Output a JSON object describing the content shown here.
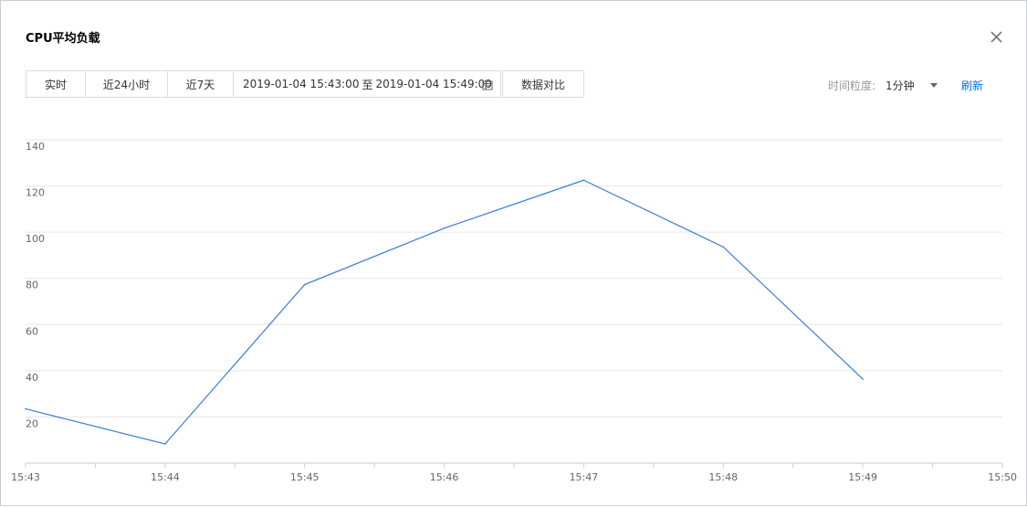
{
  "dialog": {
    "title": "CPU平均负载"
  },
  "toolbar": {
    "realtime": "实时",
    "last24h": "近24小时",
    "last7d": "近7天",
    "range_start": "2019-01-04 15:43:00",
    "range_sep": "至",
    "range_end": "2019-01-04 15:49:00",
    "compare": "数据对比"
  },
  "granularity": {
    "label": "时间粒度:",
    "value": "1分钟"
  },
  "refresh_label": "刷新",
  "icons": {
    "close": "close-icon",
    "calendar": "calendar-icon",
    "dropdown": "chevron-down-icon"
  },
  "colors": {
    "line": "#3a7bd5",
    "accent": "#006eff"
  },
  "chart_data": {
    "type": "line",
    "x": [
      "15:43",
      "15:44",
      "15:45",
      "15:46",
      "15:47",
      "15:48",
      "15:49"
    ],
    "x_ticks": [
      "15:43",
      "15:44",
      "15:45",
      "15:46",
      "15:47",
      "15:48",
      "15:49",
      "15:50"
    ],
    "y_ticks": [
      20,
      40,
      60,
      80,
      100,
      120,
      140
    ],
    "series": [
      {
        "values": [
          23.5,
          8.3,
          77.3,
          101.7,
          122.5,
          93.6,
          36.4
        ]
      }
    ],
    "ylim": [
      0,
      140
    ],
    "grid": true,
    "title": "",
    "xlabel": "",
    "ylabel": ""
  }
}
